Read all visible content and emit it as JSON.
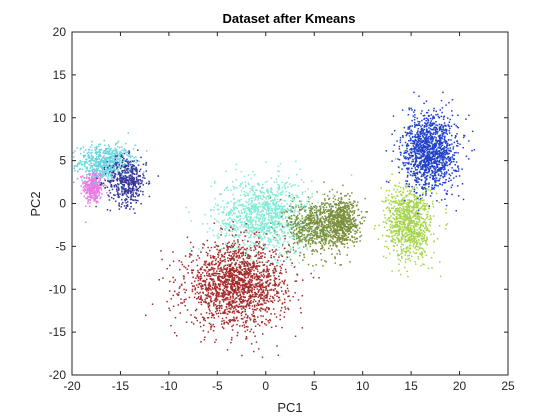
{
  "chart_data": {
    "type": "scatter",
    "title": "Dataset after Kmeans",
    "xlabel": "PC1",
    "ylabel": "PC2",
    "xlim": [
      -20,
      25
    ],
    "ylim": [
      -20,
      20
    ],
    "xticks": [
      -20,
      -15,
      -10,
      -5,
      0,
      5,
      10,
      15,
      20,
      25
    ],
    "yticks": [
      -20,
      -15,
      -10,
      -5,
      0,
      5,
      10,
      15,
      20
    ],
    "xtick_labels": [
      "-20",
      "-15",
      "-10",
      "-5",
      "0",
      "5",
      "10",
      "15",
      "20",
      "25"
    ],
    "ytick_labels": [
      "-20",
      "-15",
      "-10",
      "-5",
      "0",
      "5",
      "10",
      "15",
      "20"
    ],
    "grid": false,
    "legend": "none",
    "series": [
      {
        "color": "#e879e0",
        "cx": -17.8,
        "cy": 2.0,
        "sx": 0.5,
        "sy": 1.0,
        "count": 350
      },
      {
        "color": "#66d4df",
        "cx": -16.5,
        "cy": 4.8,
        "sx": 1.4,
        "sy": 1.0,
        "count": 600
      },
      {
        "color": "#36369a",
        "cx": -14.3,
        "cy": 2.6,
        "sx": 1.0,
        "sy": 1.4,
        "count": 450
      },
      {
        "color": "#82ead5",
        "cx": -0.2,
        "cy": -1.5,
        "sx": 2.5,
        "sy": 2.2,
        "count": 1200
      },
      {
        "color": "#a52a2a",
        "cx": -3.0,
        "cy": -9.5,
        "sx": 2.6,
        "sy": 2.4,
        "count": 1800
      },
      {
        "color": "#7a8f3a",
        "cx": 5.0,
        "cy": -2.8,
        "sx": 1.4,
        "sy": 1.6,
        "count": 600
      },
      {
        "color": "#7a8f3a",
        "cx": 7.8,
        "cy": -2.0,
        "sx": 0.9,
        "sy": 1.4,
        "count": 600
      },
      {
        "color": "#a4d448",
        "cx": 14.8,
        "cy": -2.2,
        "sx": 1.2,
        "sy": 2.2,
        "count": 900
      },
      {
        "color": "#2041c8",
        "cx": 17.0,
        "cy": 6.0,
        "sx": 1.4,
        "sy": 2.2,
        "count": 1300
      }
    ]
  }
}
